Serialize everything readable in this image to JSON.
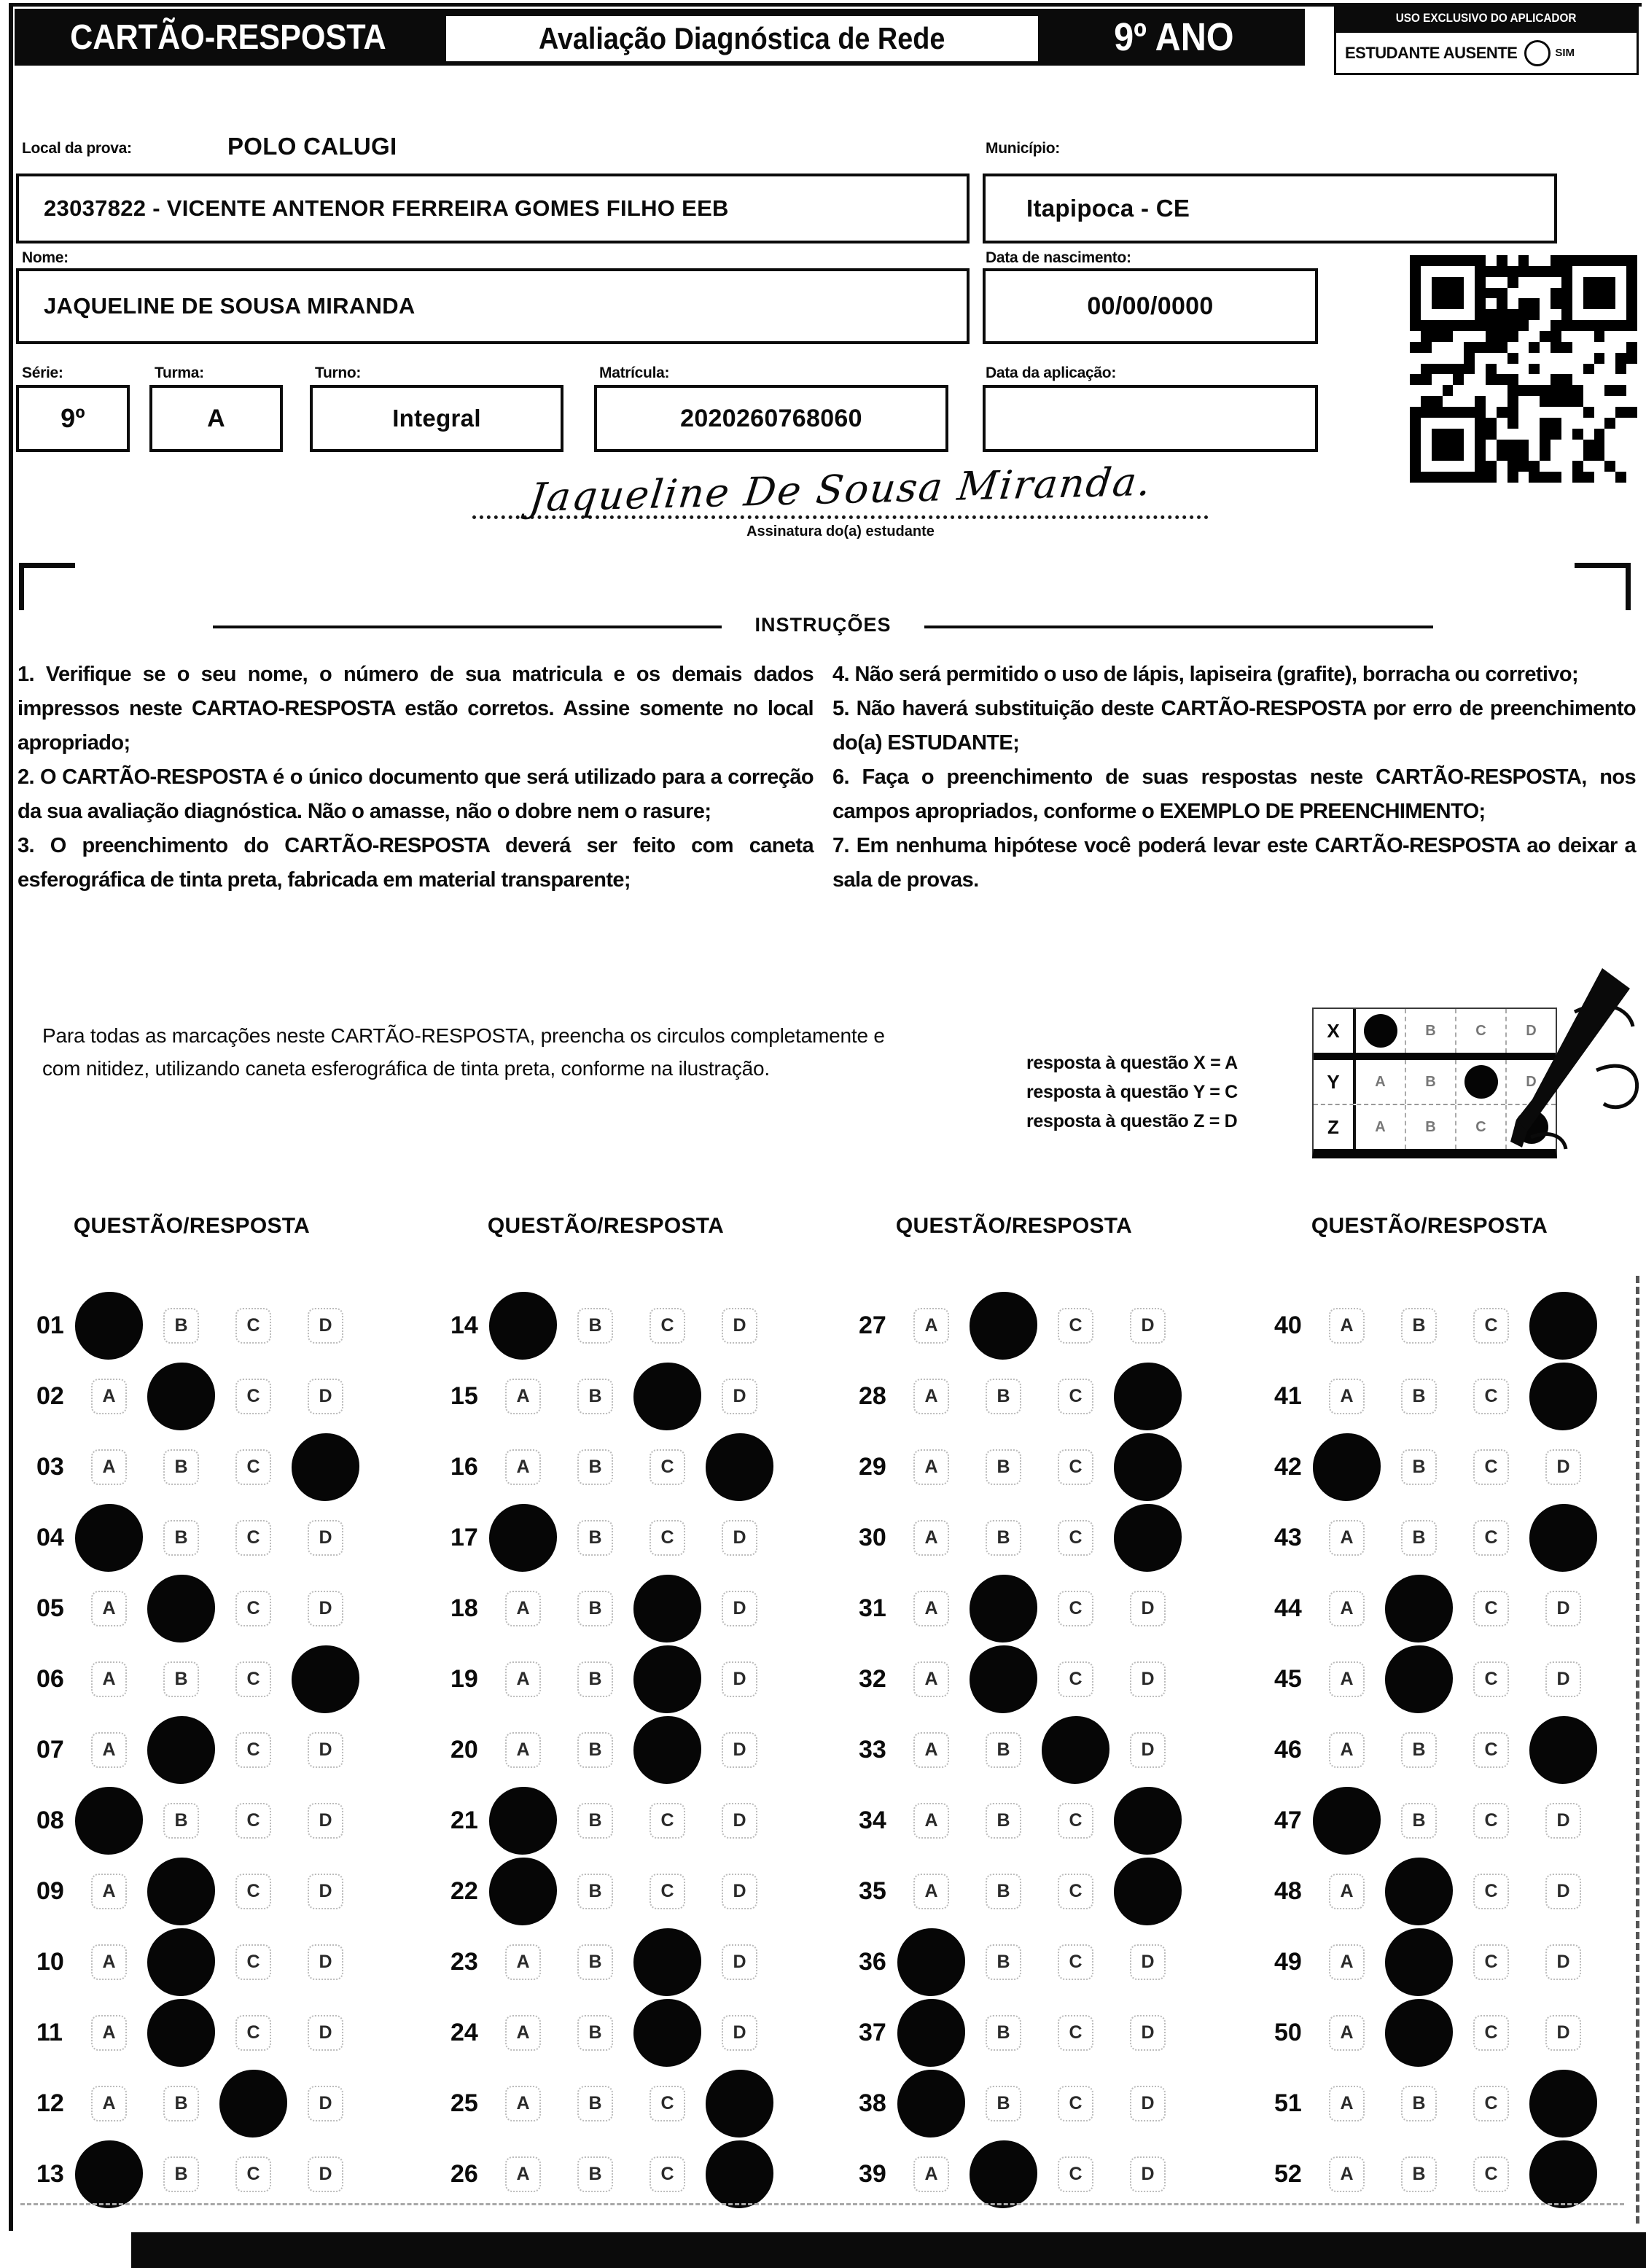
{
  "colors": {
    "ink": "#0b0b0b",
    "paper": "#ffffff"
  },
  "header": {
    "title": "CARTÃO-RESPOSTA",
    "subtitle": "Avaliação Diagnóstica de Rede",
    "grade": "9º ANO",
    "applicator_box_title": "USO EXCLUSIVO DO APLICADOR",
    "absent_label": "ESTUDANTE AUSENTE",
    "absent_option": "SIM"
  },
  "student": {
    "local_label": "Local da prova:",
    "local_value": "POLO CALUGI",
    "school_value": "23037822 - VICENTE ANTENOR FERREIRA GOMES FILHO EEB",
    "municipio_label": "Município:",
    "municipio_value": "Itapipoca - CE",
    "nome_label": "Nome:",
    "nome_value": "JAQUELINE DE SOUSA MIRANDA",
    "nascimento_label": "Data de nascimento:",
    "nascimento_value": "00/00/0000",
    "serie_label": "Série:",
    "serie_value": "9º",
    "turma_label": "Turma:",
    "turma_value": "A",
    "turno_label": "Turno:",
    "turno_value": "Integral",
    "matricula_label": "Matrícula:",
    "matricula_value": "2020260768060",
    "aplicacao_label": "Data da aplicação:",
    "aplicacao_value": "",
    "signature_text": "Jaqueline De Sousa Miranda.",
    "signature_caption": "Assinatura do(a) estudante"
  },
  "instructions": {
    "title": "INSTRUÇÕES",
    "left": [
      "1. Verifique se o seu nome, o número de sua matricula e os demais dados impressos neste CARTAO-RESPOSTA estão corretos. Assine somente no local apropriado;",
      "2. O CARTÃO-RESPOSTA é o único documento que será utilizado para a correção da sua avaliação diagnóstica. Não o amasse, não o dobre nem o rasure;",
      "3. O preenchimento do CARTÃO-RESPOSTA deverá ser feito com caneta esferográfica de tinta preta, fabricada em material transparente;"
    ],
    "right": [
      "4. Não será permitido o uso de lápis, lapiseira (grafite), borracha ou corretivo;",
      "5. Não haverá substituição deste CARTÃO-RESPOSTA por erro de preenchimento do(a) ESTUDANTE;",
      "6. Faça o preenchimento de suas respostas neste CARTÃO-RESPOSTA, nos campos apropriados, conforme o EXEMPLO DE PREENCHIMENTO;",
      "7. Em nenhuma hipótese você poderá levar este CARTÃO-RESPOSTA ao deixar a sala de provas."
    ]
  },
  "example": {
    "paragraph": "Para todas as marcações neste CARTÃO-RESPOSTA, preencha os circulos completamente e com nitidez, utilizando caneta esferográfica de tinta preta, conforme na ilustração.",
    "legend": [
      "resposta à questão X = A",
      "resposta à questão Y = C",
      "resposta à questão Z = D"
    ],
    "options": [
      "A",
      "B",
      "C",
      "D"
    ],
    "grid": [
      {
        "label": "X",
        "answer": "A"
      },
      {
        "label": "Y",
        "answer": "C"
      },
      {
        "label": "Z",
        "answer": "D"
      }
    ]
  },
  "answers": {
    "column_header": "QUESTÃO/RESPOSTA",
    "options": [
      "A",
      "B",
      "C",
      "D"
    ],
    "columns": [
      [
        {
          "q": "01",
          "a": "A"
        },
        {
          "q": "02",
          "a": "B"
        },
        {
          "q": "03",
          "a": "D"
        },
        {
          "q": "04",
          "a": "A"
        },
        {
          "q": "05",
          "a": "B"
        },
        {
          "q": "06",
          "a": "D"
        },
        {
          "q": "07",
          "a": "B"
        },
        {
          "q": "08",
          "a": "A"
        },
        {
          "q": "09",
          "a": "B"
        },
        {
          "q": "10",
          "a": "B"
        },
        {
          "q": "11",
          "a": "B"
        },
        {
          "q": "12",
          "a": "C"
        },
        {
          "q": "13",
          "a": "A"
        }
      ],
      [
        {
          "q": "14",
          "a": "A"
        },
        {
          "q": "15",
          "a": "C"
        },
        {
          "q": "16",
          "a": "D"
        },
        {
          "q": "17",
          "a": "A"
        },
        {
          "q": "18",
          "a": "C"
        },
        {
          "q": "19",
          "a": "C"
        },
        {
          "q": "20",
          "a": "C"
        },
        {
          "q": "21",
          "a": "A"
        },
        {
          "q": "22",
          "a": "A"
        },
        {
          "q": "23",
          "a": "C"
        },
        {
          "q": "24",
          "a": "C"
        },
        {
          "q": "25",
          "a": "D"
        },
        {
          "q": "26",
          "a": "D"
        }
      ],
      [
        {
          "q": "27",
          "a": "B"
        },
        {
          "q": "28",
          "a": "D"
        },
        {
          "q": "29",
          "a": "D"
        },
        {
          "q": "30",
          "a": "D"
        },
        {
          "q": "31",
          "a": "B"
        },
        {
          "q": "32",
          "a": "B"
        },
        {
          "q": "33",
          "a": "C"
        },
        {
          "q": "34",
          "a": "D"
        },
        {
          "q": "35",
          "a": "D"
        },
        {
          "q": "36",
          "a": "A"
        },
        {
          "q": "37",
          "a": "A"
        },
        {
          "q": "38",
          "a": "A"
        },
        {
          "q": "39",
          "a": "B"
        }
      ],
      [
        {
          "q": "40",
          "a": "D"
        },
        {
          "q": "41",
          "a": "D"
        },
        {
          "q": "42",
          "a": "A"
        },
        {
          "q": "43",
          "a": "D"
        },
        {
          "q": "44",
          "a": "B"
        },
        {
          "q": "45",
          "a": "B"
        },
        {
          "q": "46",
          "a": "D"
        },
        {
          "q": "47",
          "a": "A"
        },
        {
          "q": "48",
          "a": "B"
        },
        {
          "q": "49",
          "a": "B"
        },
        {
          "q": "50",
          "a": "B"
        },
        {
          "q": "51",
          "a": "D"
        },
        {
          "q": "52",
          "a": "D"
        }
      ]
    ]
  }
}
